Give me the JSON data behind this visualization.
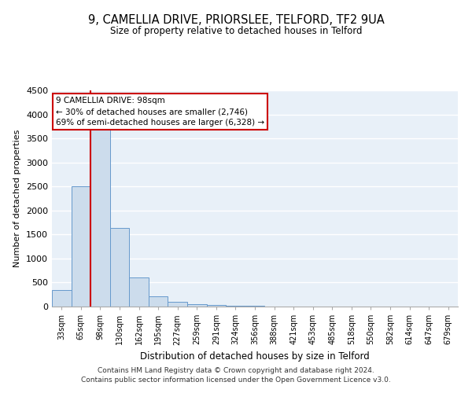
{
  "title": "9, CAMELLIA DRIVE, PRIORSLEE, TELFORD, TF2 9UA",
  "subtitle": "Size of property relative to detached houses in Telford",
  "xlabel": "Distribution of detached houses by size in Telford",
  "ylabel": "Number of detached properties",
  "bar_labels": [
    "33sqm",
    "65sqm",
    "98sqm",
    "130sqm",
    "162sqm",
    "195sqm",
    "227sqm",
    "259sqm",
    "291sqm",
    "324sqm",
    "356sqm",
    "388sqm",
    "421sqm",
    "453sqm",
    "485sqm",
    "518sqm",
    "550sqm",
    "582sqm",
    "614sqm",
    "647sqm",
    "679sqm"
  ],
  "bar_values": [
    350,
    2500,
    3750,
    1630,
    600,
    220,
    100,
    55,
    30,
    15,
    10,
    8,
    5,
    3,
    2,
    2,
    1,
    1,
    1,
    1,
    1
  ],
  "bar_color": "#ccdcec",
  "bar_edge_color": "#6699cc",
  "vline_x": 1.5,
  "vline_color": "#cc0000",
  "annotation_title": "9 CAMELLIA DRIVE: 98sqm",
  "annotation_line1": "← 30% of detached houses are smaller (2,746)",
  "annotation_line2": "69% of semi-detached houses are larger (6,328) →",
  "annotation_box_color": "#ffffff",
  "annotation_box_edge": "#cc0000",
  "ylim": [
    0,
    4500
  ],
  "yticks": [
    0,
    500,
    1000,
    1500,
    2000,
    2500,
    3000,
    3500,
    4000,
    4500
  ],
  "background_color": "#e8f0f8",
  "grid_color": "#ffffff",
  "footer_line1": "Contains HM Land Registry data © Crown copyright and database right 2024.",
  "footer_line2": "Contains public sector information licensed under the Open Government Licence v3.0."
}
